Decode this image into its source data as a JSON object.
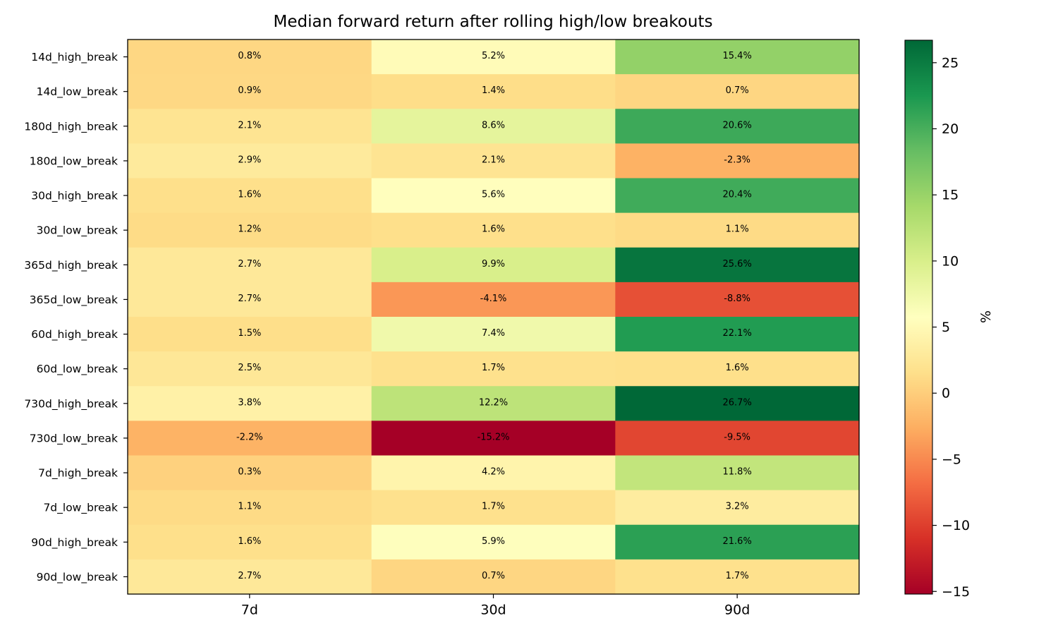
{
  "chart_data": {
    "type": "heatmap",
    "title": "Median forward return after rolling high/low breakouts",
    "columns": [
      "7d",
      "30d",
      "90d"
    ],
    "rows": [
      "14d_high_break",
      "14d_low_break",
      "180d_high_break",
      "180d_low_break",
      "30d_high_break",
      "30d_low_break",
      "365d_high_break",
      "365d_low_break",
      "60d_high_break",
      "60d_low_break",
      "730d_high_break",
      "730d_low_break",
      "7d_high_break",
      "7d_low_break",
      "90d_high_break",
      "90d_low_break"
    ],
    "values": [
      [
        0.8,
        5.2,
        15.4
      ],
      [
        0.9,
        1.4,
        0.7
      ],
      [
        2.1,
        8.6,
        20.6
      ],
      [
        2.9,
        2.1,
        -2.3
      ],
      [
        1.6,
        5.6,
        20.4
      ],
      [
        1.2,
        1.6,
        1.1
      ],
      [
        2.7,
        9.9,
        25.6
      ],
      [
        2.7,
        -4.1,
        -8.8
      ],
      [
        1.5,
        7.4,
        22.1
      ],
      [
        2.5,
        1.7,
        1.6
      ],
      [
        3.8,
        12.2,
        26.7
      ],
      [
        -2.2,
        -15.2,
        -9.5
      ],
      [
        0.3,
        4.2,
        11.8
      ],
      [
        1.1,
        1.7,
        3.2
      ],
      [
        1.6,
        5.9,
        21.6
      ],
      [
        2.7,
        0.7,
        1.7
      ]
    ],
    "cell_labels": [
      [
        "0.8%",
        "5.2%",
        "15.4%"
      ],
      [
        "0.9%",
        "1.4%",
        "0.7%"
      ],
      [
        "2.1%",
        "8.6%",
        "20.6%"
      ],
      [
        "2.9%",
        "2.1%",
        "-2.3%"
      ],
      [
        "1.6%",
        "5.6%",
        "20.4%"
      ],
      [
        "1.2%",
        "1.6%",
        "1.1%"
      ],
      [
        "2.7%",
        "9.9%",
        "25.6%"
      ],
      [
        "2.7%",
        "-4.1%",
        "-8.8%"
      ],
      [
        "1.5%",
        "7.4%",
        "22.1%"
      ],
      [
        "2.5%",
        "1.7%",
        "1.6%"
      ],
      [
        "3.8%",
        "12.2%",
        "26.7%"
      ],
      [
        "-2.2%",
        "-15.2%",
        "-9.5%"
      ],
      [
        "0.3%",
        "4.2%",
        "11.8%"
      ],
      [
        "1.1%",
        "1.7%",
        "3.2%"
      ],
      [
        "1.6%",
        "5.9%",
        "21.6%"
      ],
      [
        "2.7%",
        "0.7%",
        "1.7%"
      ]
    ],
    "colorbar": {
      "label": "%",
      "range": [
        -15.2,
        26.7
      ],
      "ticks": [
        -15,
        -10,
        -5,
        0,
        5,
        10,
        15,
        20,
        25
      ],
      "tick_labels": [
        "−15",
        "−10",
        "−5",
        "0",
        "5",
        "10",
        "15",
        "20",
        "25"
      ],
      "colormap": "RdYlGn",
      "color_stops": [
        "#a50026",
        "#d73027",
        "#f46d43",
        "#fdae61",
        "#fee08b",
        "#ffffbf",
        "#d9ef8b",
        "#a6d96a",
        "#66bd63",
        "#1a9850",
        "#006837"
      ]
    }
  }
}
